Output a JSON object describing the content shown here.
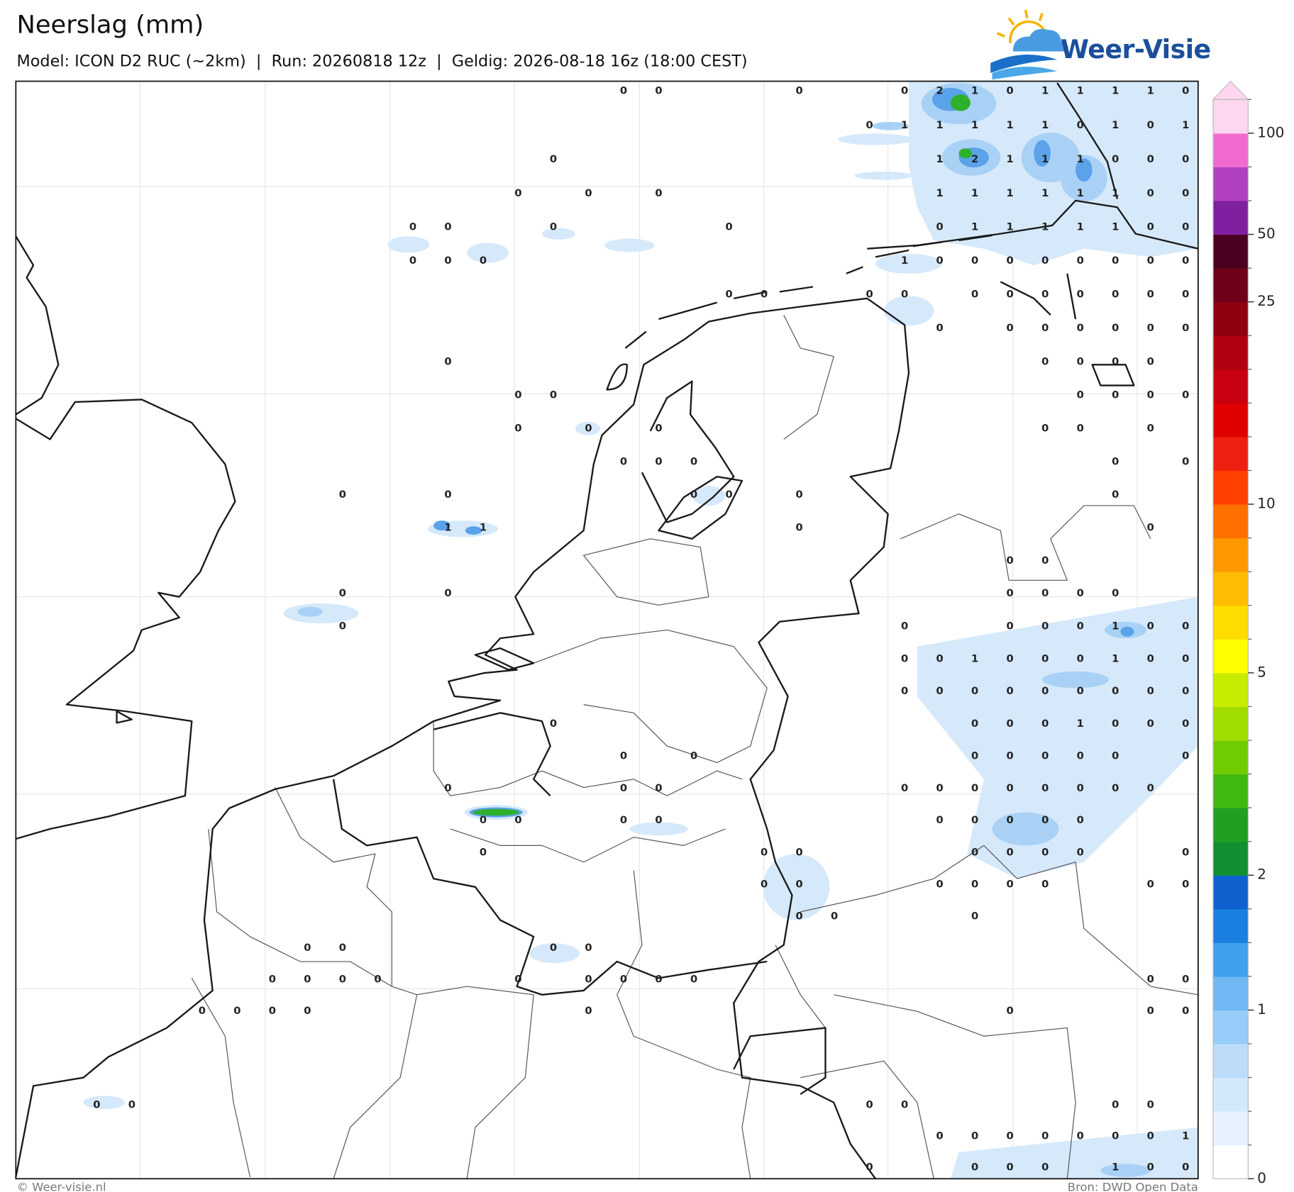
{
  "header": {
    "title": "Neerslag (mm)",
    "subtitle": "Model: ICON D2 RUC (~2km)  |  Run: 20260818 12z  |  Geldig: 2026-08-18 16z (18:00 CEST)",
    "logo": "Weer-Visie"
  },
  "grid": {
    "rows": [
      [
        null,
        null,
        null,
        null,
        null,
        null,
        null,
        null,
        null,
        null,
        null,
        null,
        null,
        null,
        null,
        0,
        0,
        null,
        null,
        null,
        0,
        null,
        null,
        0,
        2,
        1,
        0,
        1,
        1,
        1,
        1,
        0
      ],
      [
        null,
        null,
        null,
        null,
        null,
        null,
        null,
        null,
        null,
        null,
        null,
        null,
        null,
        null,
        null,
        null,
        null,
        null,
        null,
        null,
        null,
        null,
        0,
        1,
        1,
        1,
        1,
        1,
        0,
        1,
        0,
        1
      ],
      [
        null,
        null,
        null,
        null,
        null,
        null,
        null,
        null,
        null,
        null,
        null,
        null,
        null,
        0,
        null,
        null,
        null,
        null,
        null,
        null,
        null,
        null,
        null,
        null,
        1,
        2,
        1,
        1,
        1,
        0,
        0,
        0
      ],
      [
        null,
        null,
        null,
        null,
        null,
        null,
        null,
        null,
        null,
        null,
        null,
        null,
        0,
        null,
        0,
        null,
        0,
        null,
        null,
        null,
        null,
        null,
        null,
        null,
        1,
        1,
        1,
        1,
        1,
        1,
        0,
        0
      ],
      [
        null,
        null,
        null,
        null,
        null,
        null,
        null,
        null,
        null,
        0,
        0,
        null,
        null,
        0,
        null,
        null,
        null,
        null,
        0,
        null,
        null,
        null,
        null,
        null,
        0,
        1,
        1,
        1,
        1,
        1,
        0,
        0
      ],
      [
        null,
        null,
        null,
        null,
        null,
        null,
        null,
        null,
        null,
        0,
        0,
        0,
        null,
        null,
        null,
        null,
        null,
        null,
        null,
        null,
        null,
        null,
        null,
        1,
        0,
        0,
        0,
        0,
        0,
        0,
        0,
        0
      ],
      [
        null,
        null,
        null,
        null,
        null,
        null,
        null,
        null,
        null,
        null,
        null,
        null,
        null,
        null,
        null,
        null,
        null,
        null,
        0,
        0,
        null,
        null,
        0,
        0,
        null,
        0,
        0,
        0,
        0,
        0,
        0,
        0
      ],
      [
        null,
        null,
        null,
        null,
        null,
        null,
        null,
        null,
        null,
        null,
        null,
        null,
        null,
        null,
        null,
        null,
        null,
        null,
        null,
        null,
        null,
        null,
        null,
        null,
        0,
        null,
        0,
        0,
        0,
        0,
        0,
        0
      ],
      [
        null,
        null,
        null,
        null,
        null,
        null,
        null,
        null,
        null,
        null,
        0,
        null,
        null,
        null,
        null,
        null,
        null,
        null,
        null,
        null,
        null,
        null,
        null,
        null,
        null,
        null,
        null,
        0,
        0,
        0,
        0,
        null
      ],
      [
        null,
        null,
        null,
        null,
        null,
        null,
        null,
        null,
        null,
        null,
        null,
        null,
        0,
        0,
        null,
        null,
        null,
        null,
        null,
        null,
        null,
        null,
        null,
        null,
        null,
        null,
        null,
        null,
        0,
        0,
        0,
        0
      ],
      [
        null,
        null,
        null,
        null,
        null,
        null,
        null,
        null,
        null,
        null,
        null,
        null,
        0,
        null,
        0,
        null,
        0,
        null,
        null,
        null,
        null,
        null,
        null,
        null,
        null,
        null,
        null,
        0,
        0,
        null,
        0,
        null
      ],
      [
        null,
        null,
        null,
        null,
        null,
        null,
        null,
        null,
        null,
        null,
        null,
        null,
        null,
        null,
        null,
        0,
        0,
        0,
        null,
        null,
        null,
        null,
        null,
        null,
        null,
        null,
        null,
        null,
        null,
        0,
        null,
        0
      ],
      [
        null,
        null,
        null,
        null,
        null,
        null,
        null,
        0,
        null,
        null,
        0,
        null,
        null,
        null,
        null,
        null,
        null,
        0,
        0,
        null,
        0,
        null,
        null,
        null,
        null,
        null,
        null,
        null,
        null,
        0,
        null,
        null
      ],
      [
        null,
        null,
        null,
        null,
        null,
        null,
        null,
        null,
        null,
        null,
        1,
        1,
        null,
        null,
        null,
        null,
        null,
        null,
        null,
        null,
        0,
        null,
        null,
        null,
        null,
        null,
        null,
        null,
        null,
        null,
        0,
        null
      ],
      [
        null,
        null,
        null,
        null,
        null,
        null,
        null,
        null,
        null,
        null,
        null,
        null,
        null,
        null,
        null,
        null,
        null,
        null,
        null,
        null,
        null,
        null,
        null,
        null,
        null,
        null,
        0,
        0,
        null,
        null,
        null,
        null
      ],
      [
        null,
        null,
        null,
        null,
        null,
        null,
        null,
        0,
        null,
        null,
        0,
        null,
        null,
        null,
        null,
        null,
        null,
        null,
        null,
        null,
        null,
        null,
        null,
        null,
        null,
        null,
        0,
        0,
        0,
        0,
        null,
        null
      ],
      [
        null,
        null,
        null,
        null,
        null,
        null,
        null,
        0,
        null,
        null,
        null,
        null,
        null,
        null,
        null,
        null,
        null,
        null,
        null,
        null,
        null,
        null,
        null,
        0,
        null,
        null,
        0,
        0,
        0,
        1,
        0,
        0
      ],
      [
        null,
        null,
        null,
        null,
        null,
        null,
        null,
        null,
        null,
        null,
        null,
        null,
        null,
        null,
        null,
        null,
        null,
        null,
        null,
        null,
        null,
        null,
        null,
        0,
        0,
        1,
        0,
        0,
        0,
        1,
        0,
        0
      ],
      [
        null,
        null,
        null,
        null,
        null,
        null,
        null,
        null,
        null,
        null,
        null,
        null,
        null,
        null,
        null,
        null,
        null,
        null,
        null,
        null,
        null,
        null,
        null,
        0,
        0,
        0,
        0,
        0,
        0,
        0,
        0,
        0
      ],
      [
        null,
        null,
        null,
        null,
        null,
        null,
        null,
        null,
        null,
        null,
        null,
        null,
        null,
        0,
        null,
        null,
        null,
        null,
        null,
        null,
        null,
        null,
        null,
        null,
        null,
        0,
        0,
        0,
        1,
        0,
        0,
        0
      ],
      [
        null,
        null,
        null,
        null,
        null,
        null,
        null,
        null,
        null,
        null,
        null,
        null,
        null,
        null,
        null,
        0,
        null,
        0,
        null,
        null,
        null,
        null,
        null,
        null,
        null,
        0,
        0,
        0,
        0,
        0,
        null,
        0
      ],
      [
        null,
        null,
        null,
        null,
        null,
        null,
        null,
        null,
        null,
        null,
        0,
        null,
        null,
        null,
        null,
        0,
        0,
        null,
        null,
        null,
        null,
        null,
        null,
        0,
        0,
        0,
        0,
        0,
        0,
        0,
        0,
        null
      ],
      [
        null,
        null,
        null,
        null,
        null,
        null,
        null,
        null,
        null,
        null,
        null,
        0,
        0,
        null,
        null,
        0,
        0,
        null,
        null,
        null,
        null,
        null,
        null,
        null,
        0,
        0,
        0,
        0,
        0,
        null,
        null,
        null
      ],
      [
        null,
        null,
        null,
        null,
        null,
        null,
        null,
        null,
        null,
        null,
        null,
        0,
        null,
        null,
        null,
        null,
        null,
        null,
        null,
        0,
        0,
        null,
        null,
        null,
        null,
        0,
        0,
        0,
        0,
        null,
        null,
        0
      ],
      [
        null,
        null,
        null,
        null,
        null,
        null,
        null,
        null,
        null,
        null,
        null,
        null,
        null,
        null,
        null,
        null,
        null,
        null,
        null,
        0,
        0,
        null,
        null,
        null,
        0,
        0,
        0,
        0,
        null,
        null,
        0,
        0
      ],
      [
        null,
        null,
        null,
        null,
        null,
        null,
        null,
        null,
        null,
        null,
        null,
        null,
        null,
        null,
        null,
        null,
        null,
        null,
        null,
        null,
        0,
        0,
        null,
        null,
        null,
        0,
        null,
        null,
        null,
        null,
        null,
        null
      ],
      [
        null,
        null,
        null,
        null,
        null,
        null,
        0,
        0,
        null,
        null,
        null,
        null,
        null,
        0,
        0,
        null,
        null,
        null,
        null,
        null,
        null,
        null,
        null,
        null,
        null,
        null,
        null,
        null,
        null,
        null,
        null,
        null
      ],
      [
        null,
        null,
        null,
        null,
        null,
        0,
        0,
        0,
        0,
        null,
        null,
        null,
        0,
        null,
        0,
        0,
        0,
        0,
        null,
        null,
        null,
        null,
        null,
        null,
        null,
        null,
        null,
        null,
        null,
        null,
        0,
        0
      ],
      [
        null,
        null,
        null,
        0,
        0,
        0,
        0,
        null,
        null,
        null,
        null,
        null,
        null,
        null,
        0,
        null,
        null,
        null,
        null,
        null,
        null,
        null,
        null,
        null,
        null,
        null,
        0,
        null,
        null,
        null,
        0,
        0
      ],
      [
        null,
        null,
        null,
        null,
        null,
        null,
        null,
        null,
        null,
        null,
        null,
        null,
        null,
        null,
        null,
        null,
        null,
        null,
        null,
        null,
        null,
        null,
        null,
        null,
        null,
        null,
        null,
        null,
        null,
        null,
        null,
        null
      ],
      [
        null,
        null,
        null,
        null,
        null,
        null,
        null,
        null,
        null,
        null,
        null,
        null,
        null,
        null,
        null,
        null,
        null,
        null,
        null,
        null,
        null,
        null,
        null,
        null,
        null,
        null,
        null,
        null,
        null,
        null,
        null,
        null
      ],
      [
        0,
        0,
        null,
        null,
        null,
        null,
        null,
        null,
        null,
        null,
        null,
        null,
        null,
        null,
        null,
        null,
        null,
        null,
        null,
        null,
        null,
        null,
        0,
        0,
        null,
        null,
        null,
        null,
        null,
        0,
        0,
        null
      ],
      [
        null,
        null,
        null,
        null,
        null,
        null,
        null,
        null,
        null,
        null,
        null,
        null,
        null,
        null,
        null,
        null,
        null,
        null,
        null,
        null,
        null,
        null,
        null,
        null,
        0,
        0,
        0,
        0,
        0,
        0,
        0,
        1
      ],
      [
        null,
        null,
        null,
        null,
        null,
        null,
        null,
        null,
        null,
        null,
        null,
        null,
        null,
        null,
        null,
        null,
        null,
        null,
        null,
        null,
        null,
        null,
        0,
        null,
        null,
        0,
        0,
        0,
        null,
        1,
        0,
        0
      ]
    ]
  },
  "colorbar": {
    "levels": [
      0,
      0.1,
      0.2,
      0.4,
      0.6,
      1,
      1.25,
      1.5,
      1.75,
      2,
      2.5,
      3,
      3.5,
      4,
      4.5,
      5,
      6,
      7,
      8,
      9,
      10,
      12.5,
      15,
      17.5,
      20,
      22.5,
      25,
      35,
      50,
      65,
      80,
      100,
      150
    ],
    "colors": [
      "#ffffff",
      "#e8f2fe",
      "#d4e8fc",
      "#bcdcfa",
      "#98ccf8",
      "#70b8f4",
      "#40a0f0",
      "#1a80e0",
      "#1060d0",
      "#109030",
      "#20a020",
      "#40b810",
      "#70cc00",
      "#a0dc00",
      "#c8ec00",
      "#ffff00",
      "#ffdc00",
      "#ffbc00",
      "#ff9800",
      "#ff7000",
      "#ff4000",
      "#f02010",
      "#e00000",
      "#c80010",
      "#b00010",
      "#900010",
      "#700018",
      "#4a0020",
      "#8020a0",
      "#b040c0",
      "#f06ad0",
      "#ffd6f0"
    ],
    "extend_color": "#ffd6f0",
    "ticks": [
      0,
      1,
      2,
      5,
      10,
      25,
      50,
      100
    ]
  },
  "footer": {
    "copyright": "© Weer-visie.nl",
    "source": "Bron: DWD Open Data"
  }
}
